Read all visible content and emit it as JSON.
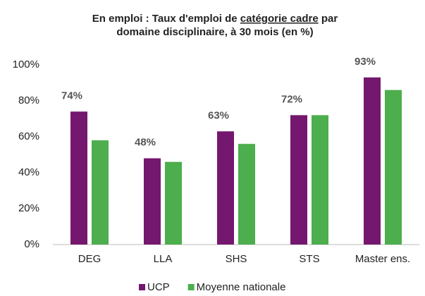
{
  "chart_data": {
    "type": "bar",
    "title": [
      [
        "En emploi :  Taux d'emploi de ",
        "catégorie cadre",
        " par"
      ],
      [
        "domaine disciplinaire, à 30 mois (en %)"
      ]
    ],
    "categories": [
      "DEG",
      "LLA",
      "SHS",
      "STS",
      "Master ens."
    ],
    "series": [
      {
        "name": "UCP",
        "color": "#74176e",
        "values": [
          74,
          48,
          63,
          72,
          93
        ],
        "value_labels": [
          "74%",
          "48%",
          "63%",
          "72%",
          "93%"
        ]
      },
      {
        "name": "Moyenne nationale",
        "color": "#4cae4c",
        "values": [
          58,
          46,
          56,
          72,
          86
        ]
      }
    ],
    "ylim": [
      0,
      100
    ],
    "yticks": [
      {
        "value": 0,
        "label": "0%"
      },
      {
        "value": 20,
        "label": "20%"
      },
      {
        "value": 40,
        "label": "40%"
      },
      {
        "value": 60,
        "label": "60%"
      },
      {
        "value": 80,
        "label": "80%"
      },
      {
        "value": 100,
        "label": "100%"
      }
    ],
    "grid": false,
    "legend": "bottom"
  }
}
